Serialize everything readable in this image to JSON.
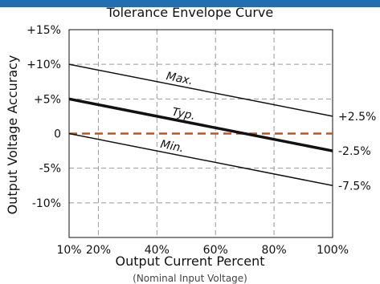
{
  "chart_data": {
    "type": "line",
    "title": "Tolerance Envelope  Curve",
    "xlabel": "Output Current Percent",
    "xlabel_note": "(Nominal Input Voltage)",
    "ylabel": "Output  Voltage Accuracy",
    "xlim": [
      10,
      100
    ],
    "ylim": [
      -15,
      15
    ],
    "x_ticks": [
      10,
      20,
      40,
      60,
      80,
      100
    ],
    "x_tick_labels": [
      "10%",
      "20%",
      "40%",
      "60%",
      "80%",
      "100%"
    ],
    "y_ticks": [
      15,
      10,
      5,
      0,
      -5,
      -10
    ],
    "y_tick_labels": [
      "+15%",
      "+10%",
      "+5%",
      "0",
      "-5%",
      "-10%"
    ],
    "grid": true,
    "series": [
      {
        "name": "Max.",
        "x": [
          10,
          100
        ],
        "y": [
          10,
          2.5
        ]
      },
      {
        "name": "Typ.",
        "x": [
          10,
          100
        ],
        "y": [
          5,
          -2.5
        ]
      },
      {
        "name": "Min.",
        "x": [
          10,
          100
        ],
        "y": [
          0,
          -7.5
        ]
      }
    ],
    "reference_line": {
      "y": 0
    },
    "end_labels": [
      "+2.5%",
      "-2.5%",
      "-7.5%"
    ],
    "colors": {
      "reference": "#c8501e",
      "lines": "#111111",
      "grid": "#9a9a9a",
      "banner": "#1f6fb2"
    }
  }
}
